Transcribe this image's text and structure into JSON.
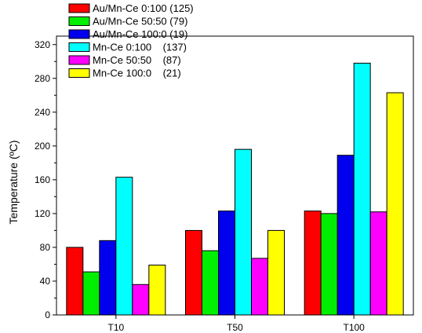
{
  "chart_data": {
    "type": "bar",
    "categories": [
      "T10",
      "T50",
      "T100"
    ],
    "series": [
      {
        "name": "Au/Mn-Ce 0:100 (125)",
        "color": "#ff0000",
        "values": [
          80,
          100,
          123
        ]
      },
      {
        "name": "Au/Mn-Ce 50:50 (79)",
        "color": "#00ee00",
        "values": [
          51,
          76,
          120
        ]
      },
      {
        "name": "Au/Mn-Ce 100:0 (19)",
        "color": "#0000ee",
        "values": [
          88,
          123,
          189
        ]
      },
      {
        "name": "Mn-Ce 0:100    (137)",
        "color": "#00ffff",
        "values": [
          163,
          196,
          298
        ]
      },
      {
        "name": "Mn-Ce 50:50    (87)",
        "color": "#ff00ff",
        "values": [
          36,
          67,
          122
        ]
      },
      {
        "name": "Mn-Ce 100:0    (21)",
        "color": "#ffff00",
        "values": [
          59,
          100,
          263
        ]
      }
    ],
    "ylabel": "Temperature (ºC)",
    "xlabel": "",
    "ylim": [
      0,
      320
    ],
    "yticks": [
      0,
      40,
      80,
      120,
      160,
      200,
      240,
      280,
      320
    ],
    "grid": false,
    "legend_position": "top-left"
  }
}
